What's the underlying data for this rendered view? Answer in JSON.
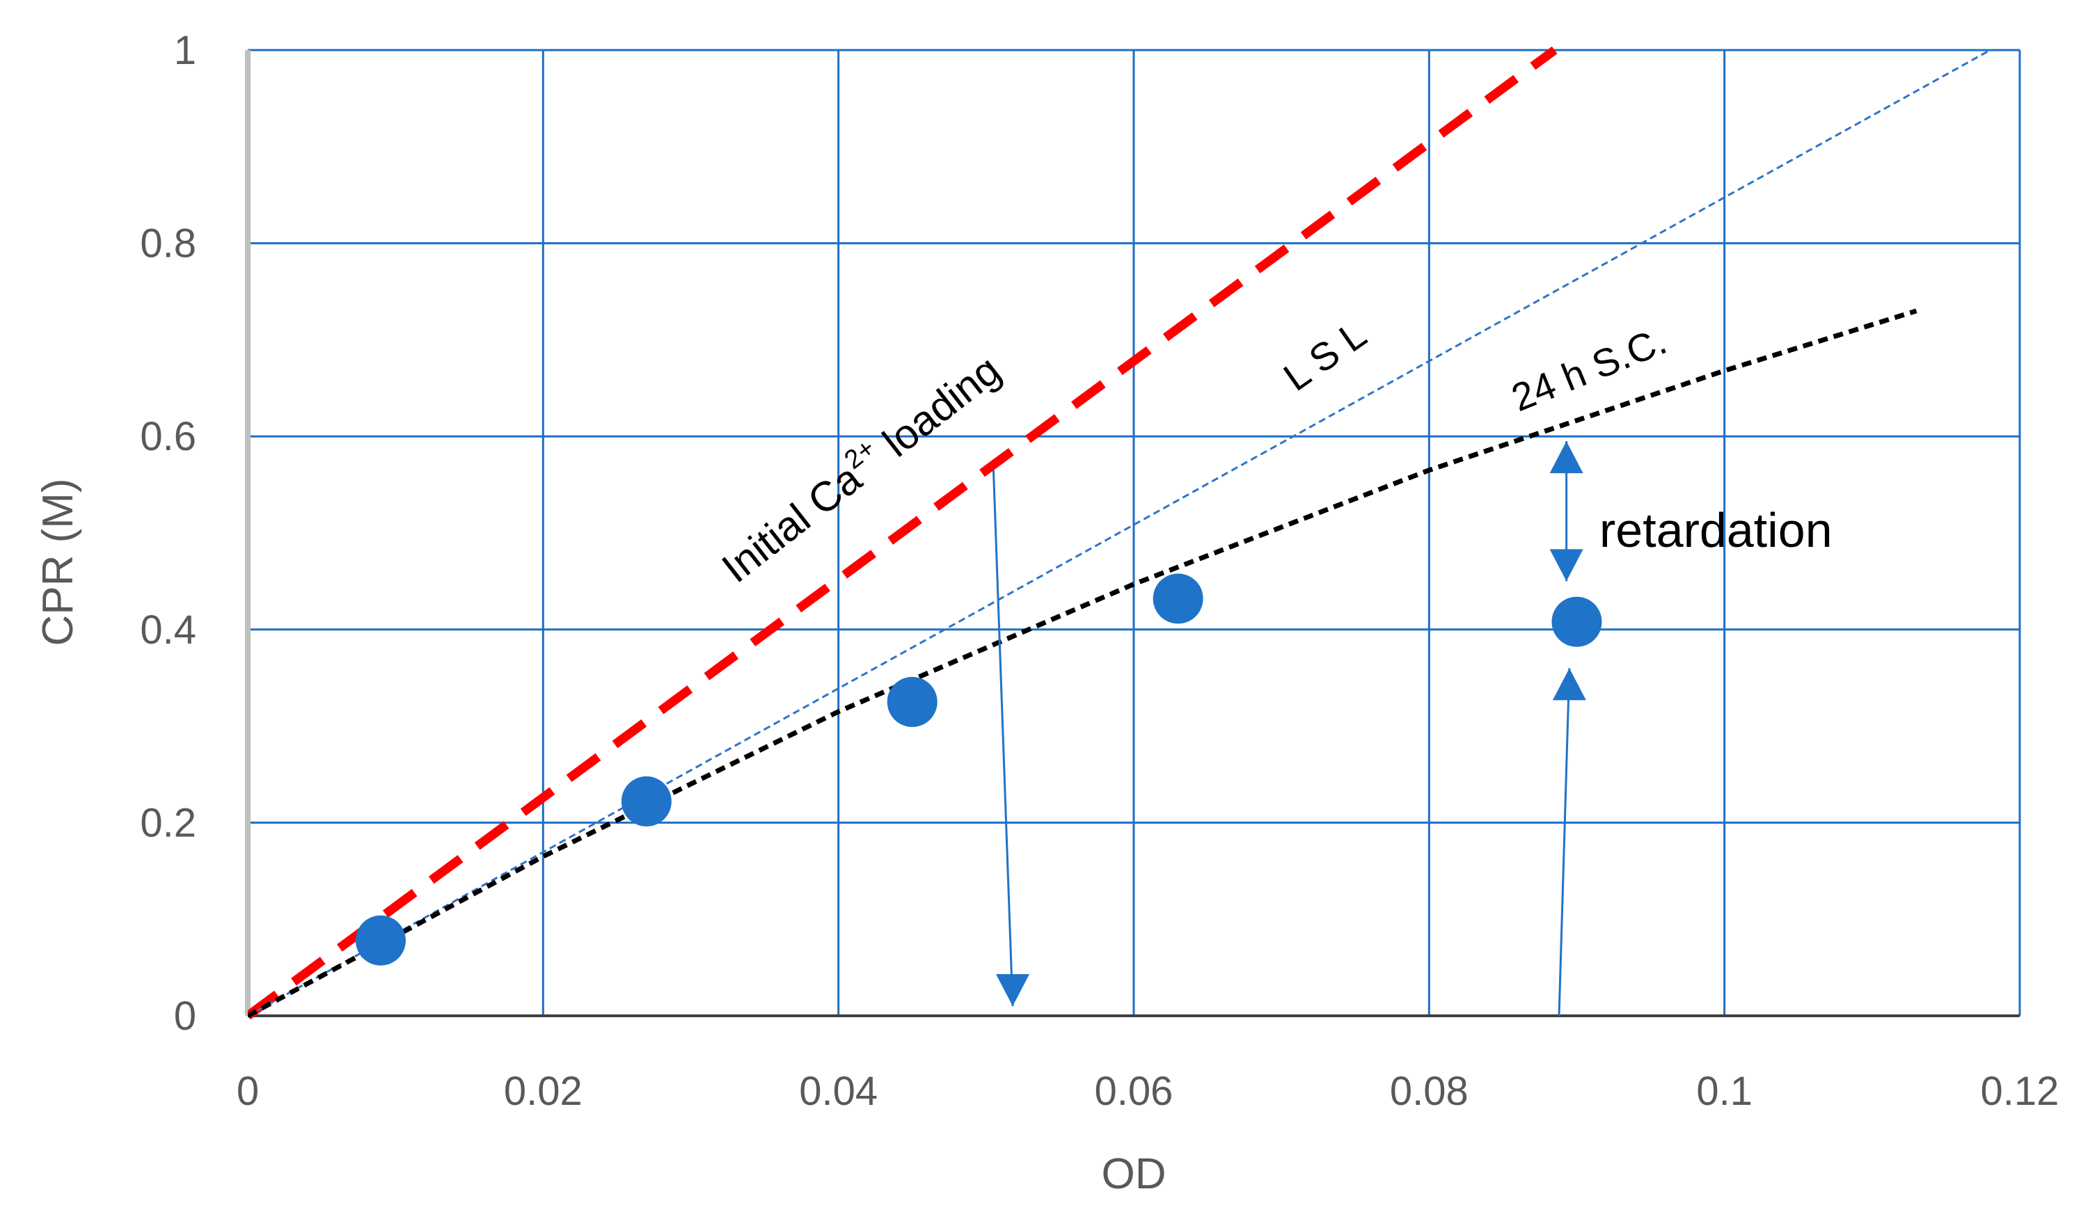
{
  "chart_data": {
    "type": "line",
    "xlabel": "OD",
    "ylabel": "CPR (M)",
    "xlim": [
      0,
      0.12
    ],
    "ylim": [
      0,
      1
    ],
    "xticks": [
      0,
      0.02,
      0.04,
      0.06,
      0.08,
      0.1,
      0.12
    ],
    "xtick_labels": [
      "0",
      "0.02",
      "0.04",
      "0.06",
      "0.08",
      "0.1",
      "0.12"
    ],
    "yticks": [
      0,
      0.2,
      0.4,
      0.6,
      0.8,
      1
    ],
    "ytick_labels": [
      "0",
      "0.2",
      "0.4",
      "0.6",
      "0.8",
      "1"
    ],
    "grid": true,
    "series": [
      {
        "name": "Initial Ca2+ loading",
        "style": "dashed",
        "color": "#ff0000",
        "x": [
          0,
          0.0885
        ],
        "y": [
          0,
          1.0
        ]
      },
      {
        "name": "L S L",
        "style": "dotted",
        "color": "#2e75c6",
        "x": [
          0,
          0.118
        ],
        "y": [
          0,
          1.0
        ]
      },
      {
        "name": "24 h S.C.",
        "style": "dotted",
        "color": "#000000",
        "x": [
          0,
          0.02,
          0.04,
          0.06,
          0.08,
          0.1,
          0.113
        ],
        "y": [
          0,
          0.165,
          0.315,
          0.447,
          0.565,
          0.668,
          0.73
        ]
      },
      {
        "name": "",
        "style": "markers",
        "color": "#1f73c8",
        "x": [
          0.009,
          0.027,
          0.045,
          0.063,
          0.09
        ],
        "y": [
          0.078,
          0.222,
          0.325,
          0.432,
          0.408
        ]
      }
    ],
    "annotations": {
      "initial_pre": "Initial Ca",
      "initial_sup": "2+",
      "initial_post": " loading",
      "lsl": "L S L",
      "sc24": "24 h S.C.",
      "retardation": "retardation"
    },
    "arrows": [
      {
        "from": [
          0.0505,
          0.565
        ],
        "to": [
          0.0518,
          0.01
        ]
      },
      {
        "from": [
          0.0888,
          0
        ],
        "to": [
          0.0895,
          0.36
        ]
      },
      {
        "from": [
          0.0893,
          0.595
        ],
        "to": [
          0.0893,
          0.45
        ]
      }
    ]
  }
}
